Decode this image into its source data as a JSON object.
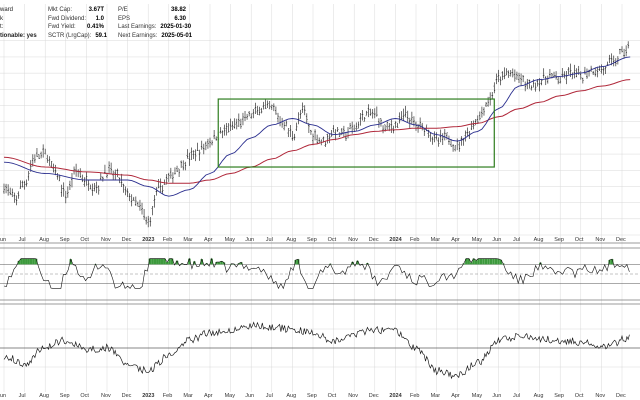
{
  "header": {
    "left_partial": [
      "ward",
      "k",
      "t:",
      "",
      "tionable: yes"
    ],
    "stats": [
      [
        {
          "label": "Mkt Cap:",
          "value": "3.67T"
        },
        {
          "label": "P/E",
          "value": "38.82"
        }
      ],
      [
        {
          "label": "Fwd Dividend:",
          "value": "1.0"
        },
        {
          "label": "EPS",
          "value": "6.30"
        }
      ],
      [
        {
          "label": "Fwd Yield:",
          "value": "0.41%"
        },
        {
          "label": "Last Earnings:",
          "value": "2025-01-30"
        }
      ],
      [
        {
          "label": "SCTR (LrgCap):",
          "value": "59.1"
        },
        {
          "label": "Next Earnings:",
          "value": "2025-05-01"
        }
      ]
    ]
  },
  "chart_data": {
    "type": "line",
    "x_ticks": [
      {
        "label": "un",
        "year": false
      },
      {
        "label": "Jul",
        "year": false
      },
      {
        "label": "Aug",
        "year": false
      },
      {
        "label": "Sep",
        "year": false
      },
      {
        "label": "Oct",
        "year": false
      },
      {
        "label": "Nov",
        "year": false
      },
      {
        "label": "Dec",
        "year": false
      },
      {
        "label": "2023",
        "year": true
      },
      {
        "label": "Feb",
        "year": false
      },
      {
        "label": "Mar",
        "year": false
      },
      {
        "label": "Apr",
        "year": false
      },
      {
        "label": "May",
        "year": false
      },
      {
        "label": "Jun",
        "year": false
      },
      {
        "label": "Jul",
        "year": false
      },
      {
        "label": "Aug",
        "year": false
      },
      {
        "label": "Sep",
        "year": false
      },
      {
        "label": "Oct",
        "year": false
      },
      {
        "label": "Nov",
        "year": false
      },
      {
        "label": "Dec",
        "year": false
      },
      {
        "label": "2024",
        "year": true
      },
      {
        "label": "Feb",
        "year": false
      },
      {
        "label": "Mar",
        "year": false
      },
      {
        "label": "Apr",
        "year": false
      },
      {
        "label": "May",
        "year": false
      },
      {
        "label": "Jun",
        "year": false
      },
      {
        "label": "Jul",
        "year": false
      },
      {
        "label": "Aug",
        "year": false
      },
      {
        "label": "Sep",
        "year": false
      },
      {
        "label": "Oct",
        "year": false
      },
      {
        "label": "Nov",
        "year": false
      },
      {
        "label": "Dec",
        "year": false
      }
    ],
    "price_range": [
      0,
      100
    ],
    "price_anchors": [
      [
        0,
        30
      ],
      [
        0.5,
        22
      ],
      [
        1,
        32
      ],
      [
        1.5,
        48
      ],
      [
        2,
        50
      ],
      [
        2.5,
        38
      ],
      [
        3,
        25
      ],
      [
        3.5,
        40
      ],
      [
        4,
        33
      ],
      [
        4.5,
        30
      ],
      [
        5,
        40
      ],
      [
        5.5,
        36
      ],
      [
        6,
        25
      ],
      [
        6.5,
        18
      ],
      [
        7,
        8
      ],
      [
        7.5,
        28
      ],
      [
        8,
        35
      ],
      [
        8.5,
        42
      ],
      [
        9,
        48
      ],
      [
        9.5,
        52
      ],
      [
        10,
        58
      ],
      [
        10.5,
        63
      ],
      [
        11,
        66
      ],
      [
        11.5,
        70
      ],
      [
        12,
        74
      ],
      [
        12.5,
        78
      ],
      [
        13,
        78
      ],
      [
        13.5,
        70
      ],
      [
        14,
        62
      ],
      [
        14.5,
        76
      ],
      [
        15,
        62
      ],
      [
        15.5,
        58
      ],
      [
        16,
        64
      ],
      [
        16.5,
        62
      ],
      [
        17,
        66
      ],
      [
        17.5,
        74
      ],
      [
        18,
        75
      ],
      [
        18.5,
        66
      ],
      [
        19,
        68
      ],
      [
        19.5,
        74
      ],
      [
        20,
        68
      ],
      [
        20.5,
        66
      ],
      [
        21,
        58
      ],
      [
        21.5,
        60
      ],
      [
        22,
        55
      ],
      [
        22.5,
        63
      ],
      [
        23,
        72
      ],
      [
        23.5,
        82
      ],
      [
        24,
        96
      ],
      [
        24.5,
        100
      ],
      [
        25,
        97
      ],
      [
        25.5,
        92
      ],
      [
        26,
        95
      ],
      [
        26.5,
        98
      ],
      [
        27,
        96
      ],
      [
        27.5,
        100
      ],
      [
        28,
        98
      ],
      [
        28.5,
        102
      ],
      [
        29,
        102
      ],
      [
        29.5,
        106
      ],
      [
        30,
        112
      ],
      [
        30.4,
        118
      ]
    ],
    "sma_fast_anchors": [
      [
        0,
        45
      ],
      [
        2,
        38
      ],
      [
        4,
        34
      ],
      [
        6,
        34
      ],
      [
        7,
        30
      ],
      [
        8,
        24
      ],
      [
        9,
        28
      ],
      [
        10,
        38
      ],
      [
        11,
        50
      ],
      [
        12,
        60
      ],
      [
        13,
        68
      ],
      [
        14,
        72
      ],
      [
        15,
        68
      ],
      [
        16,
        62
      ],
      [
        17,
        64
      ],
      [
        18,
        68
      ],
      [
        19,
        72
      ],
      [
        20,
        68
      ],
      [
        21,
        62
      ],
      [
        22,
        58
      ],
      [
        23,
        64
      ],
      [
        24,
        78
      ],
      [
        25,
        92
      ],
      [
        26,
        96
      ],
      [
        27,
        98
      ],
      [
        28,
        100
      ],
      [
        29,
        104
      ],
      [
        30.4,
        110
      ]
    ],
    "sma_slow_anchors": [
      [
        0,
        48
      ],
      [
        2,
        42
      ],
      [
        4,
        39
      ],
      [
        6,
        37
      ],
      [
        7,
        34
      ],
      [
        8,
        32
      ],
      [
        9,
        32
      ],
      [
        10,
        34
      ],
      [
        11,
        38
      ],
      [
        12,
        42
      ],
      [
        13,
        47
      ],
      [
        14,
        52
      ],
      [
        15,
        56
      ],
      [
        16,
        59
      ],
      [
        17,
        62
      ],
      [
        18,
        64
      ],
      [
        19,
        65
      ],
      [
        20,
        66
      ],
      [
        21,
        66
      ],
      [
        22,
        67
      ],
      [
        23,
        69
      ],
      [
        24,
        73
      ],
      [
        25,
        78
      ],
      [
        26,
        82
      ],
      [
        27,
        86
      ],
      [
        28,
        89
      ],
      [
        29,
        92
      ],
      [
        30.4,
        96
      ]
    ],
    "highlight_box": {
      "x_from": 10.4,
      "x_to": 23.8,
      "y_from": 42,
      "y_to": 84
    },
    "rsi_range": [
      0,
      100
    ],
    "rsi_levels": [
      70,
      30
    ],
    "lower_indicator_range": [
      0,
      100
    ],
    "lower_indicator_anchors": [
      [
        0,
        40
      ],
      [
        1,
        30
      ],
      [
        2,
        52
      ],
      [
        3,
        60
      ],
      [
        4,
        48
      ],
      [
        5,
        50
      ],
      [
        6,
        30
      ],
      [
        7,
        20
      ],
      [
        8,
        40
      ],
      [
        9,
        60
      ],
      [
        10,
        70
      ],
      [
        11,
        74
      ],
      [
        12,
        80
      ],
      [
        13,
        78
      ],
      [
        14,
        74
      ],
      [
        15,
        70
      ],
      [
        16,
        60
      ],
      [
        17,
        68
      ],
      [
        18,
        74
      ],
      [
        19,
        72
      ],
      [
        20,
        50
      ],
      [
        21,
        20
      ],
      [
        22,
        14
      ],
      [
        23,
        30
      ],
      [
        24,
        60
      ],
      [
        25,
        66
      ],
      [
        26,
        62
      ],
      [
        27,
        60
      ],
      [
        28,
        58
      ],
      [
        29,
        50
      ],
      [
        30.4,
        64
      ]
    ],
    "colors": {
      "price": "#111111",
      "sma_fast": "#2b2f8f",
      "sma_slow": "#b0283a",
      "box": "#2e7d1e",
      "rsi_fill": "#3c9a3c",
      "grid": "#d9d9d9"
    }
  }
}
